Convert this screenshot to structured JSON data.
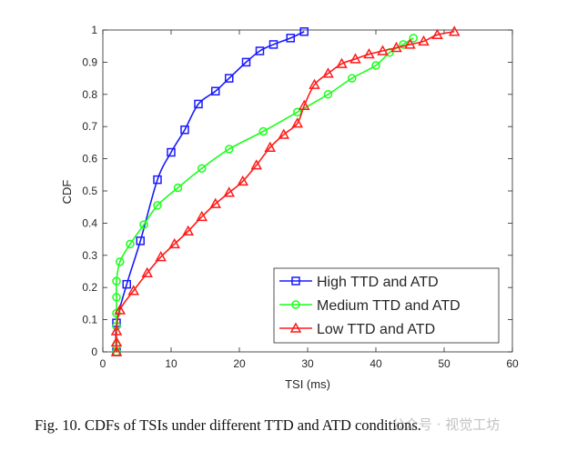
{
  "chart_data": {
    "type": "line",
    "xlabel": "TSI (ms)",
    "ylabel": "CDF",
    "xlim": [
      0,
      60
    ],
    "ylim": [
      0,
      1
    ],
    "xticks": [
      0,
      10,
      20,
      30,
      40,
      50,
      60
    ],
    "yticks": [
      0,
      0.1,
      0.2,
      0.3,
      0.4,
      0.5,
      0.6,
      0.7,
      0.8,
      0.9,
      1
    ],
    "grid": false,
    "legend_position": "bottom-right",
    "series": [
      {
        "name": "High TTD and ATD",
        "color": "#1a1aff",
        "marker": "square",
        "x": [
          2,
          2,
          3.5,
          5.5,
          8,
          10,
          12,
          14,
          16.5,
          18.5,
          21,
          23,
          25,
          27.5,
          29.5
        ],
        "y": [
          0,
          0.09,
          0.21,
          0.345,
          0.535,
          0.62,
          0.69,
          0.77,
          0.81,
          0.85,
          0.9,
          0.935,
          0.955,
          0.975,
          0.995
        ]
      },
      {
        "name": "Medium TTD and ATD",
        "color": "#1aff1a",
        "marker": "circle",
        "x": [
          2,
          2,
          2,
          2,
          2,
          2,
          2.5,
          4,
          6,
          8,
          11,
          14.5,
          18.5,
          23.5,
          28.5,
          33,
          36.5,
          40,
          42,
          44,
          45.5
        ],
        "y": [
          0,
          0.02,
          0.08,
          0.12,
          0.17,
          0.22,
          0.28,
          0.335,
          0.395,
          0.455,
          0.51,
          0.57,
          0.63,
          0.685,
          0.745,
          0.8,
          0.85,
          0.89,
          0.93,
          0.955,
          0.975
        ]
      },
      {
        "name": "Low TTD and ATD",
        "color": "#ff1a1a",
        "marker": "triangle",
        "x": [
          2,
          2,
          2,
          2.5,
          4.5,
          6.5,
          8.5,
          10.5,
          12.5,
          14.5,
          16.5,
          18.5,
          20.5,
          22.5,
          24.5,
          26.5,
          28.5,
          29.5,
          31,
          33,
          35,
          37,
          39,
          41,
          43,
          45,
          47,
          49,
          51.5
        ],
        "y": [
          0,
          0.03,
          0.065,
          0.13,
          0.19,
          0.245,
          0.295,
          0.335,
          0.375,
          0.42,
          0.46,
          0.495,
          0.53,
          0.58,
          0.635,
          0.675,
          0.71,
          0.765,
          0.83,
          0.865,
          0.895,
          0.91,
          0.925,
          0.935,
          0.945,
          0.955,
          0.965,
          0.985,
          0.995
        ]
      }
    ]
  },
  "caption": "Fig. 10.  CDFs of TSIs under different TTD and ATD conditions.",
  "watermark": "公众号 · 视觉工坊"
}
